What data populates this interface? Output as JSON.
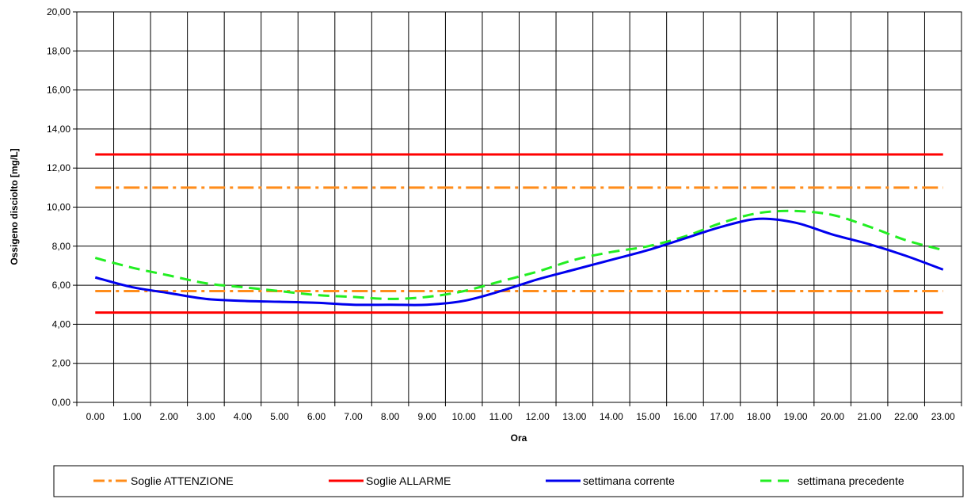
{
  "chart_data": {
    "type": "line",
    "title": "",
    "xlabel": "Ora",
    "ylabel": "Ossigeno disciolto [mg/L]",
    "ylim": [
      0,
      20
    ],
    "yticks": [
      "0,00",
      "2,00",
      "4,00",
      "6,00",
      "8,00",
      "10,00",
      "12,00",
      "14,00",
      "16,00",
      "18,00",
      "20,00"
    ],
    "categories": [
      "0.00",
      "1.00",
      "2.00",
      "3.00",
      "4.00",
      "5.00",
      "6.00",
      "7.00",
      "8.00",
      "9.00",
      "10.00",
      "11.00",
      "12.00",
      "13.00",
      "14.00",
      "15.00",
      "16.00",
      "17.00",
      "18.00",
      "19.00",
      "20.00",
      "21.00",
      "22.00",
      "23.00"
    ],
    "grid": true,
    "legend_position": "bottom",
    "thresholds": [
      {
        "name": "Soglie ATTENZIONE",
        "color": "#ff8c1a",
        "style": "dash-dot",
        "values": [
          11.0,
          5.7
        ]
      },
      {
        "name": "Soglie ALLARME",
        "color": "#ff0000",
        "style": "solid",
        "values": [
          12.7,
          4.6
        ]
      }
    ],
    "series": [
      {
        "name": "settimana corrente",
        "color": "#0000ee",
        "style": "solid",
        "values": [
          6.4,
          5.9,
          5.6,
          5.3,
          5.2,
          5.15,
          5.1,
          5.0,
          5.0,
          5.0,
          5.2,
          5.7,
          6.3,
          6.8,
          7.3,
          7.8,
          8.4,
          9.0,
          9.4,
          9.2,
          8.6,
          8.1,
          7.5,
          6.8
        ]
      },
      {
        "name": "settimana precedente",
        "color": "#22ee22",
        "style": "dashed",
        "values": [
          7.4,
          6.9,
          6.5,
          6.1,
          5.9,
          5.7,
          5.5,
          5.4,
          5.3,
          5.4,
          5.7,
          6.2,
          6.7,
          7.3,
          7.7,
          8.0,
          8.5,
          9.2,
          9.7,
          9.8,
          9.6,
          9.0,
          8.3,
          7.8
        ]
      }
    ],
    "legend": [
      "Soglie ATTENZIONE",
      "Soglie ALLARME",
      "settimana corrente",
      "settimana precedente"
    ]
  }
}
